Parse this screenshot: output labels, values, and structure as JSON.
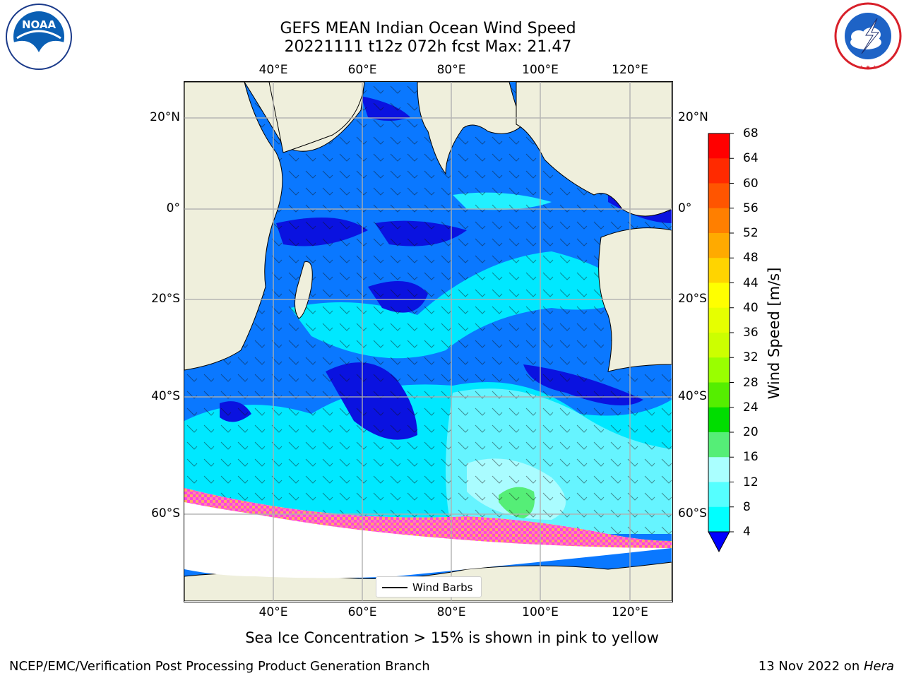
{
  "title": {
    "line1": "GEFS MEAN Indian Ocean Wind Speed",
    "line2": "20221111 t12z 072h fcst   Max: 21.47"
  },
  "lon_ticks": [
    "40°E",
    "60°E",
    "80°E",
    "100°E",
    "120°E"
  ],
  "lat_ticks": [
    "20°N",
    "0°",
    "20°S",
    "40°S",
    "60°S"
  ],
  "colorbar": {
    "label": "Wind Speed [m/s]",
    "ticks": [
      "68",
      "64",
      "60",
      "56",
      "52",
      "48",
      "44",
      "40",
      "36",
      "32",
      "28",
      "24",
      "20",
      "16",
      "12",
      "8",
      "4"
    ],
    "colors": [
      "#ff0000",
      "#ff2a00",
      "#ff5500",
      "#ff7f00",
      "#ffaa00",
      "#ffd400",
      "#ffff00",
      "#e6ff00",
      "#ccff00",
      "#99ff00",
      "#55ee00",
      "#00dd00",
      "#55ee77",
      "#aaffff",
      "#55ffff",
      "#00ffff",
      "#0088ff",
      "#0000ff"
    ]
  },
  "legend": {
    "label": "Wind Barbs"
  },
  "caption": "Sea Ice Concentration > 15% is shown in pink to yellow",
  "footer": {
    "left": "NCEP/EMC/Verification Post Processing Product Generation Branch",
    "date": "13 Nov 2022 on ",
    "host": "Hera"
  },
  "logos": {
    "noaa": "NOAA",
    "noaa_ring": "NATIONAL OCEANIC AND ATMOSPHERIC ADMINISTRATION · U.S. DEPARTMENT OF COMMERCE",
    "nws_ring": "NATIONAL WEATHER SERVICE"
  }
}
